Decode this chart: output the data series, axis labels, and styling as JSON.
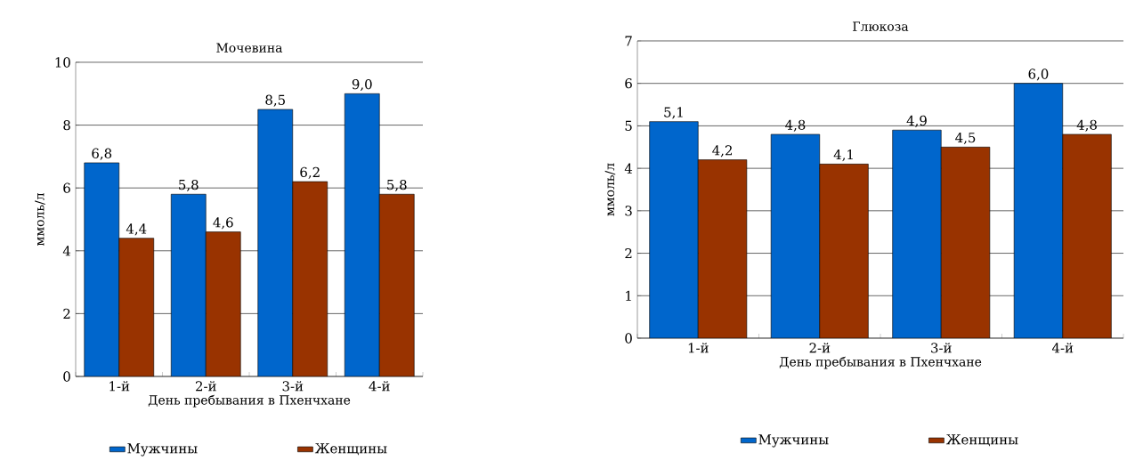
{
  "chart_data": [
    {
      "type": "bar",
      "title": "Мочевина",
      "xlabel": "День пребывания в Пхенчхане",
      "ylabel": "ммоль/л",
      "categories": [
        "1-й",
        "2-й",
        "3-й",
        "4-й"
      ],
      "series": [
        {
          "name": "Мужчины",
          "color": "#0066cc",
          "values": [
            6.8,
            5.8,
            8.5,
            9.0
          ],
          "value_labels": [
            "6,8",
            "5,8",
            "8,5",
            "9,0"
          ]
        },
        {
          "name": "Женщины",
          "color": "#993300",
          "values": [
            4.4,
            4.6,
            6.2,
            5.8
          ],
          "value_labels": [
            "4,4",
            "4,6",
            "6,2",
            "5,8"
          ]
        }
      ],
      "ylim": [
        0,
        10
      ],
      "yticks": [
        0,
        2,
        4,
        6,
        8,
        10
      ],
      "grid": "y",
      "legend": "bottom"
    },
    {
      "type": "bar",
      "title": "Глюкоза",
      "xlabel": "День пребывания в Пхенчхане",
      "ylabel": "ммоль/л",
      "categories": [
        "1-й",
        "2-й",
        "3-й",
        "4-й"
      ],
      "series": [
        {
          "name": "Мужчины",
          "color": "#0066cc",
          "values": [
            5.1,
            4.8,
            4.9,
            6.0
          ],
          "value_labels": [
            "5,1",
            "4,8",
            "4,9",
            "6,0"
          ]
        },
        {
          "name": "Женщины",
          "color": "#993300",
          "values": [
            4.2,
            4.1,
            4.5,
            4.8
          ],
          "value_labels": [
            "4,2",
            "4,1",
            "4,5",
            "4,8"
          ]
        }
      ],
      "ylim": [
        0,
        7
      ],
      "yticks": [
        0,
        1,
        2,
        3,
        4,
        5,
        6,
        7
      ],
      "grid": "y",
      "legend": "bottom"
    }
  ]
}
